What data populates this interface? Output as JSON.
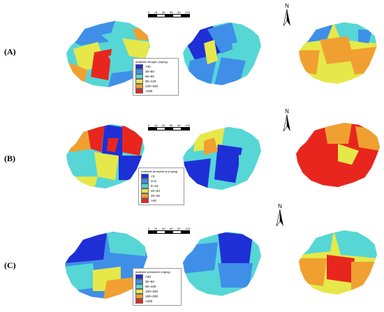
{
  "rows": [
    {
      "label": "(A)",
      "legend_title": "available nitrogen (mg/kg)",
      "classes": [
        {
          "label": "<30",
          "color": "#1f2fd6"
        },
        {
          "label": "30~60",
          "color": "#3f8fe8"
        },
        {
          "label": "60~90",
          "color": "#57d6d6"
        },
        {
          "label": "90~120",
          "color": "#e6e84a"
        },
        {
          "label": "120~150",
          "color": "#f0a030"
        },
        {
          "label": ">150",
          "color": "#e8261e"
        }
      ]
    },
    {
      "label": "(B)",
      "legend_title": "available phosphorus (mg/kg)",
      "classes": [
        {
          "label": "<3",
          "color": "#1f2fd6"
        },
        {
          "label": "3~5",
          "color": "#3f8fe8"
        },
        {
          "label": "5~10",
          "color": "#57d6d6"
        },
        {
          "label": "10~20",
          "color": "#e6e84a"
        },
        {
          "label": "20~40",
          "color": "#f0a030"
        },
        {
          "label": ">40",
          "color": "#e8261e"
        }
      ]
    },
    {
      "label": "(C)",
      "legend_title": "available potassium (mg/kg)",
      "classes": [
        {
          "label": "<30",
          "color": "#1f2fd6"
        },
        {
          "label": "30~50",
          "color": "#3f8fe8"
        },
        {
          "label": "50~100",
          "color": "#57d6d6"
        },
        {
          "label": "100~150",
          "color": "#e6e84a"
        },
        {
          "label": "150~200",
          "color": "#f0a030"
        },
        {
          "label": ">200",
          "color": "#e8261e"
        }
      ]
    }
  ],
  "scale_ticks": [
    "0",
    "15",
    "30",
    "60",
    "90",
    "120"
  ],
  "north_label": "N"
}
